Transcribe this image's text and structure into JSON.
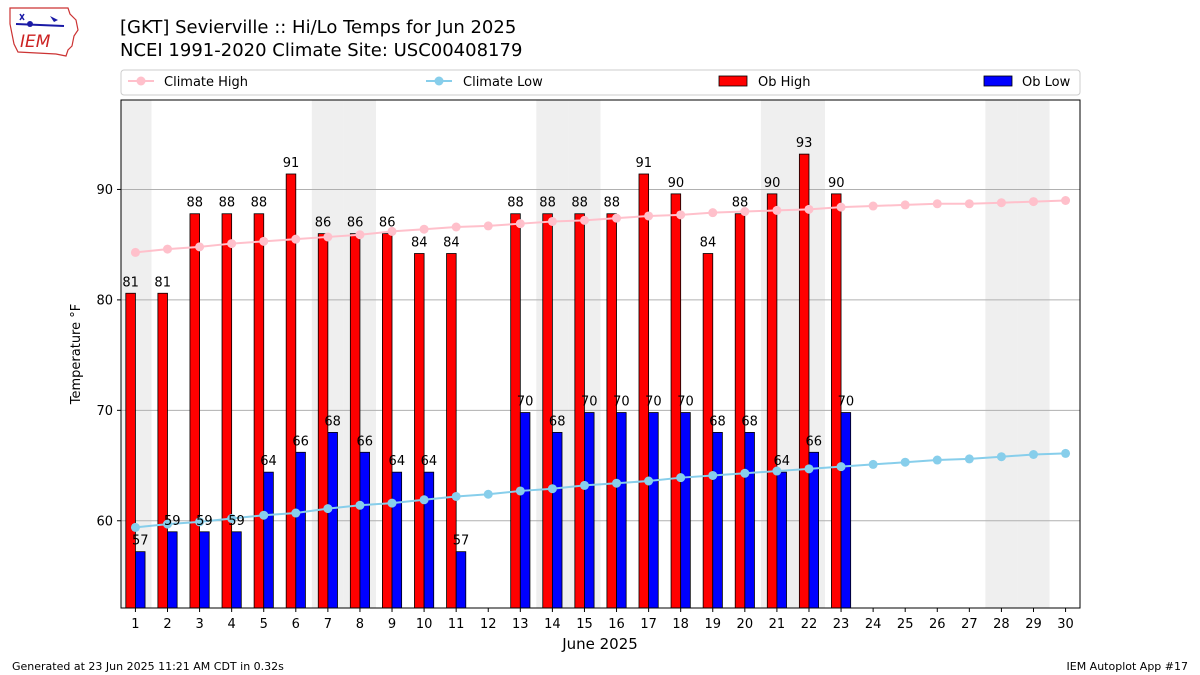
{
  "title_line1": "[GKT] Sevierville :: Hi/Lo Temps for Jun 2025",
  "title_line2": "NCEI 1991-2020 Climate Site: USC00408179",
  "logo_text": "IEM",
  "footer_left": "Generated at 23 Jun 2025 11:21 AM CDT in 0.32s",
  "footer_right": "IEM Autoplot App #17",
  "colors": {
    "ob_high": "#ff0000",
    "ob_low": "#0000ff",
    "climate_high": "#ffc0cb",
    "climate_low": "#87ceeb",
    "weekend_shade": "#efefef",
    "grid": "#b0b0b0"
  },
  "chart_data": {
    "type": "bar",
    "xlabel": "June 2025",
    "ylabel": "Temperature °F",
    "ylim": [
      52.1,
      98.1
    ],
    "yticks": [
      60,
      70,
      80,
      90
    ],
    "grid": "horizontal",
    "legend_placement": "top",
    "categories": [
      1,
      2,
      3,
      4,
      5,
      6,
      7,
      8,
      9,
      10,
      11,
      12,
      13,
      14,
      15,
      16,
      17,
      18,
      19,
      20,
      21,
      22,
      23,
      24,
      25,
      26,
      27,
      28,
      29,
      30
    ],
    "shaded_days": [
      1,
      7,
      8,
      14,
      15,
      21,
      22,
      28,
      29
    ],
    "legend": [
      "Climate High",
      "Climate Low",
      "Ob High",
      "Ob Low"
    ],
    "series": [
      {
        "name": "Ob High",
        "type": "bar",
        "values": [
          81,
          81,
          88,
          88,
          88,
          91,
          86,
          86,
          86,
          84,
          84,
          null,
          88,
          88,
          88,
          88,
          91,
          90,
          84,
          88,
          90,
          93,
          90,
          null,
          null,
          null,
          null,
          null,
          null,
          null
        ],
        "bar_tops": [
          80.6,
          80.6,
          87.8,
          87.8,
          87.8,
          91.4,
          86,
          86,
          86,
          84.2,
          84.2,
          null,
          87.8,
          87.8,
          87.8,
          87.8,
          91.4,
          89.6,
          84.2,
          87.8,
          89.6,
          93.2,
          89.6,
          null,
          null,
          null,
          null,
          null,
          null,
          null
        ]
      },
      {
        "name": "Ob Low",
        "type": "bar",
        "values": [
          57,
          59,
          59,
          59,
          64,
          66,
          68,
          66,
          64,
          64,
          57,
          null,
          70,
          68,
          70,
          70,
          70,
          70,
          68,
          68,
          64,
          66,
          70,
          null,
          null,
          null,
          null,
          null,
          null,
          null
        ],
        "bar_tops": [
          57.2,
          59,
          59,
          59,
          64.4,
          66.2,
          68,
          66.2,
          64.4,
          64.4,
          57.2,
          null,
          69.8,
          68,
          69.8,
          69.8,
          69.8,
          69.8,
          68,
          68,
          64.4,
          66.2,
          69.8,
          null,
          null,
          null,
          null,
          null,
          null,
          null
        ]
      },
      {
        "name": "Climate High",
        "type": "line",
        "values": [
          84.3,
          84.6,
          84.8,
          85.1,
          85.3,
          85.5,
          85.7,
          85.9,
          86.2,
          86.4,
          86.6,
          86.7,
          86.9,
          87.1,
          87.2,
          87.4,
          87.6,
          87.7,
          87.9,
          88.0,
          88.1,
          88.2,
          88.4,
          88.5,
          88.6,
          88.7,
          88.7,
          88.8,
          88.9,
          89.0
        ]
      },
      {
        "name": "Climate Low",
        "type": "line",
        "values": [
          59.4,
          59.7,
          59.9,
          60.2,
          60.5,
          60.7,
          61.1,
          61.4,
          61.6,
          61.9,
          62.2,
          62.4,
          62.7,
          62.9,
          63.2,
          63.4,
          63.6,
          63.9,
          64.1,
          64.3,
          64.5,
          64.7,
          64.9,
          65.1,
          65.3,
          65.5,
          65.6,
          65.8,
          66.0,
          66.1
        ]
      }
    ]
  }
}
